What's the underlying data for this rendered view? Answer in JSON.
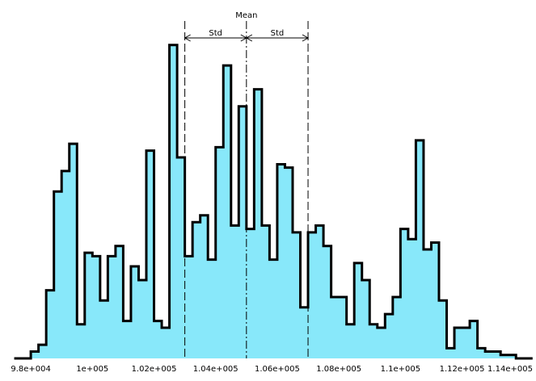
{
  "chart_data": {
    "type": "histogram",
    "x": [
      97500,
      97750,
      98000,
      98250,
      98500,
      98750,
      99000,
      99250,
      99500,
      99750,
      100000,
      100250,
      100500,
      100750,
      101000,
      101250,
      101500,
      101750,
      102000,
      102250,
      102500,
      102750,
      103000,
      103250,
      103500,
      103750,
      104000,
      104250,
      104500,
      104750,
      105000,
      105250,
      105500,
      105750,
      106000,
      106250,
      106500,
      106750,
      107000,
      107250,
      107500,
      107750,
      108000,
      108250,
      108500,
      108750,
      109000,
      109250,
      109500,
      109750,
      110000,
      110250,
      110500,
      110750,
      111000,
      111250,
      111500,
      111750,
      112000,
      112250,
      112500,
      112750,
      113000,
      113250,
      113500,
      113750,
      114000
    ],
    "values": [
      0,
      0,
      2,
      4,
      20,
      49,
      55,
      63,
      10,
      31,
      30,
      17,
      30,
      33,
      11,
      27,
      23,
      61,
      11,
      9,
      92,
      59,
      30,
      40,
      42,
      29,
      62,
      86,
      39,
      74,
      38,
      79,
      39,
      29,
      57,
      56,
      37,
      15,
      37,
      39,
      33,
      18,
      18,
      10,
      28,
      23,
      10,
      9,
      13,
      18,
      38,
      35,
      64,
      32,
      34,
      17,
      3,
      9,
      9,
      11,
      3,
      2,
      2,
      1,
      1,
      0,
      0
    ],
    "bin_width": 250,
    "xlim": [
      97000,
      114400
    ],
    "ylim": [
      0,
      100
    ],
    "tick_labels": [
      {
        "value": 98000,
        "label": "9.8e+004"
      },
      {
        "value": 100000,
        "label": "1e+005"
      },
      {
        "value": 102000,
        "label": "1.02e+005"
      },
      {
        "value": 104000,
        "label": "1.04e+005"
      },
      {
        "value": 106000,
        "label": "1.06e+005"
      },
      {
        "value": 108000,
        "label": "1.08e+005"
      },
      {
        "value": 110000,
        "label": "1.1e+005"
      },
      {
        "value": 112000,
        "label": "1.12e+005"
      },
      {
        "value": 114000,
        "label": "1.14e+005"
      }
    ],
    "mean": 105000,
    "std": 2000,
    "mean_label": "Mean",
    "std_label": "Std",
    "grid": false,
    "colors": {
      "fill": "#88e8fa",
      "outline": "#000000",
      "lines": "#000000"
    }
  }
}
